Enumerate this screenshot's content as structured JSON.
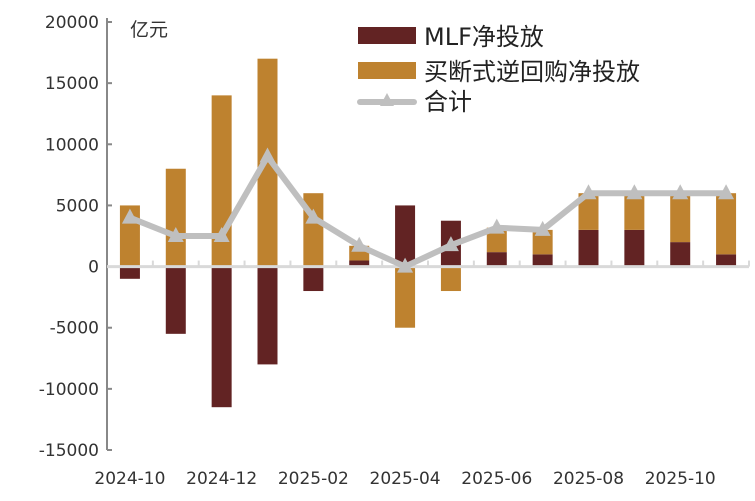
{
  "chart_data": {
    "type": "bar",
    "unit_label": "亿元",
    "categories": [
      "2024-10",
      "2024-11",
      "2024-12",
      "2025-01",
      "2025-02",
      "2025-03",
      "2025-04",
      "2025-05",
      "2025-06",
      "2025-07",
      "2025-08",
      "2025-09",
      "2025-10",
      "2025-11"
    ],
    "x_tick_labels": [
      "2024-10",
      "2024-12",
      "2025-02",
      "2025-04",
      "2025-06",
      "2025-08",
      "2025-10"
    ],
    "series": [
      {
        "name": "MLF净投放",
        "type": "bar",
        "color": "#622323",
        "values": [
          -1000,
          -5500,
          -11500,
          -8000,
          -2000,
          500,
          5000,
          3750,
          1180,
          1000,
          3000,
          3000,
          2000,
          1000
        ]
      },
      {
        "name": "买断式逆回购净投放",
        "type": "bar",
        "color": "#BE822F",
        "values": [
          5000,
          8000,
          14000,
          17000,
          6000,
          1200,
          -5000,
          -2000,
          2000,
          2000,
          3000,
          3000,
          4000,
          5000
        ]
      },
      {
        "name": "合计",
        "type": "line",
        "marker": "triangle",
        "color": "#BFBFBF",
        "values": [
          4000,
          2500,
          2500,
          9000,
          4000,
          1700,
          0,
          1750,
          3180,
          3000,
          6000,
          6000,
          6000,
          6000
        ]
      }
    ],
    "ylim": [
      -15000,
      20000
    ],
    "y_ticks": [
      "20000",
      "15000",
      "10000",
      "5000",
      "0",
      "-5000",
      "-10000",
      "-15000"
    ],
    "grid": false,
    "legend_position": "top-right"
  }
}
